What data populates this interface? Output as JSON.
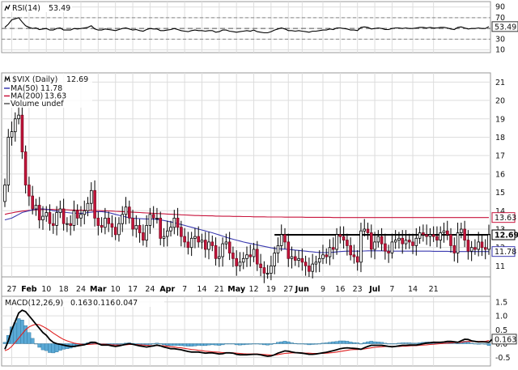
{
  "rsi_panel": {
    "label": "RSI(14)",
    "value": "53.49",
    "ticks": [
      "90",
      "70",
      "50",
      "30",
      "10"
    ],
    "tag": "53.49"
  },
  "price_panel": {
    "symbol_label": "$VIX (Daily)",
    "last": "12.69",
    "legend": [
      {
        "label": "MA(50)",
        "value": "11.78",
        "color": "#3a3ab0"
      },
      {
        "label": "MA(200)",
        "value": "13.63",
        "color": "#c8143c"
      },
      {
        "label": "Volume undef",
        "value": "",
        "color": "#555555"
      }
    ],
    "ticks": [
      "21",
      "20",
      "19",
      "18",
      "17",
      "16",
      "15",
      "14",
      "13",
      "12",
      "11"
    ],
    "tags": {
      "ma200": "13.63",
      "last": "12.69",
      "ma50": "11.78"
    }
  },
  "date_axis": [
    {
      "text": "27",
      "b": false
    },
    {
      "text": "Feb",
      "b": true
    },
    {
      "text": "10",
      "b": false
    },
    {
      "text": "18",
      "b": false
    },
    {
      "text": "24",
      "b": false
    },
    {
      "text": "Mar",
      "b": true
    },
    {
      "text": "10",
      "b": false
    },
    {
      "text": "17",
      "b": false
    },
    {
      "text": "24",
      "b": false
    },
    {
      "text": "Apr",
      "b": true
    },
    {
      "text": "7",
      "b": false
    },
    {
      "text": "14",
      "b": false
    },
    {
      "text": "21",
      "b": false
    },
    {
      "text": "May",
      "b": true
    },
    {
      "text": "12",
      "b": false
    },
    {
      "text": "19",
      "b": false
    },
    {
      "text": "27",
      "b": false
    },
    {
      "text": "Jun",
      "b": true
    },
    {
      "text": "9",
      "b": false
    },
    {
      "text": "16",
      "b": false
    },
    {
      "text": "23",
      "b": false
    },
    {
      "text": "Jul",
      "b": true
    },
    {
      "text": "7",
      "b": false
    },
    {
      "text": "14",
      "b": false
    },
    {
      "text": "21",
      "b": false
    }
  ],
  "macd_panel": {
    "label": "MACD(12,26,9)",
    "values": [
      "0.163",
      "0.116",
      "0.047"
    ],
    "colors": [
      "#000000",
      "#e02020",
      "#1f9bc4"
    ],
    "ticks": [
      "1.5",
      "1.0",
      "0.5",
      "0.0",
      "-0.5"
    ],
    "tag": "0.163"
  },
  "chart_data": {
    "type": "candlestick",
    "title": "$VIX (Daily)",
    "horizontal_line": 12.69,
    "price_ylim": [
      10.4,
      21.5
    ],
    "rsi_ylim": [
      5,
      100
    ],
    "macd_ylim": [
      -0.8,
      1.7
    ],
    "x": [
      0,
      1,
      2,
      3,
      4,
      5,
      6,
      7,
      8,
      9,
      10,
      11,
      12,
      13,
      14,
      15,
      16,
      17,
      18,
      19,
      20,
      21,
      22,
      23,
      24,
      25,
      26,
      27,
      28,
      29,
      30,
      31,
      32,
      33,
      34,
      35,
      36,
      37,
      38,
      39,
      40,
      41,
      42,
      43,
      44,
      45,
      46,
      47,
      48,
      49,
      50,
      51,
      52,
      53,
      54,
      55,
      56,
      57,
      58,
      59,
      60,
      61,
      62,
      63,
      64,
      65,
      66,
      67,
      68,
      69,
      70,
      71,
      72,
      73,
      74,
      75,
      76,
      77,
      78,
      79,
      80,
      81,
      82,
      83,
      84,
      85,
      86,
      87,
      88,
      89,
      90,
      91,
      92,
      93,
      94,
      95,
      96,
      97,
      98,
      99,
      100,
      101,
      102,
      103,
      104,
      105,
      106,
      107,
      108,
      109,
      110,
      111,
      112,
      113,
      114,
      115,
      116,
      117,
      118,
      119,
      120,
      121,
      122,
      123,
      124,
      125,
      126,
      127,
      128,
      129,
      130,
      131,
      132,
      133,
      134,
      135,
      136,
      137,
      138,
      139,
      140
    ],
    "open": [
      14.5,
      15.4,
      18.0,
      18.3,
      19.0,
      19.2,
      17.2,
      15.4,
      14.8,
      14.1,
      14.3,
      13.5,
      13.7,
      13.9,
      13.3,
      13.2,
      13.9,
      14.1,
      13.3,
      13.3,
      13.2,
      14.0,
      13.6,
      13.8,
      14.0,
      14.4,
      15.1,
      13.6,
      13.2,
      13.1,
      13.6,
      13.3,
      13.1,
      12.7,
      13.3,
      13.8,
      14.2,
      13.6,
      13.0,
      13.2,
      12.8,
      12.4,
      13.2,
      13.8,
      13.6,
      13.6,
      12.5,
      12.6,
      12.9,
      13.1,
      13.6,
      13.1,
      12.6,
      12.3,
      12.0,
      12.5,
      12.6,
      12.3,
      12.4,
      11.9,
      12.3,
      12.1,
      11.4,
      11.5,
      12.2,
      12.3,
      11.7,
      11.4,
      11.0,
      11.2,
      11.4,
      11.6,
      11.5,
      11.9,
      11.1,
      10.9,
      10.6,
      10.6,
      11.0,
      11.7,
      12.1,
      12.7,
      12.3,
      11.4,
      11.5,
      11.3,
      11.4,
      11.2,
      11.0,
      10.7,
      11.1,
      11.2,
      11.4,
      11.6,
      11.5,
      12.0,
      11.9,
      12.7,
      12.6,
      12.4,
      12.1,
      11.6,
      11.5,
      11.2,
      12.9,
      13.0,
      12.8,
      11.9,
      12.3,
      12.6,
      12.2,
      11.8,
      11.7,
      12.3,
      12.4,
      12.5,
      12.2,
      12.4,
      12.3,
      12.1,
      12.5,
      12.8,
      12.7,
      12.6,
      12.7,
      12.6,
      12.4,
      12.8,
      12.9,
      12.7,
      12.1,
      11.7,
      12.8,
      13.0,
      12.4,
      11.8,
      12.0,
      11.9,
      12.3,
      12.0,
      11.9
    ],
    "close": [
      15.4,
      18.0,
      18.3,
      19.0,
      19.2,
      17.2,
      15.4,
      14.8,
      14.1,
      14.3,
      13.5,
      13.7,
      13.9,
      13.3,
      13.2,
      13.9,
      14.1,
      13.3,
      13.3,
      13.2,
      14.0,
      13.6,
      13.8,
      14.0,
      14.4,
      15.1,
      13.6,
      13.2,
      13.1,
      13.6,
      13.3,
      13.1,
      12.7,
      13.3,
      13.8,
      14.2,
      13.6,
      13.0,
      13.2,
      12.8,
      12.4,
      13.2,
      13.8,
      13.6,
      13.6,
      12.5,
      12.6,
      12.9,
      13.1,
      13.6,
      13.1,
      12.6,
      12.3,
      12.0,
      12.5,
      12.6,
      12.3,
      12.4,
      11.9,
      12.3,
      12.1,
      11.4,
      11.5,
      12.2,
      12.3,
      11.7,
      11.4,
      11.0,
      11.2,
      11.4,
      11.6,
      11.5,
      11.9,
      11.1,
      10.9,
      10.6,
      10.6,
      11.0,
      11.7,
      12.1,
      12.7,
      12.3,
      11.4,
      11.5,
      11.3,
      11.4,
      11.2,
      11.0,
      10.7,
      11.1,
      11.2,
      11.4,
      11.6,
      11.5,
      12.0,
      11.9,
      12.7,
      12.6,
      12.4,
      12.1,
      11.6,
      11.5,
      11.2,
      12.9,
      13.0,
      12.8,
      11.9,
      12.3,
      12.6,
      12.2,
      11.8,
      11.7,
      12.3,
      12.4,
      12.5,
      12.2,
      12.4,
      12.3,
      12.1,
      12.5,
      12.8,
      12.7,
      12.6,
      12.7,
      12.6,
      12.4,
      12.8,
      12.9,
      12.7,
      12.1,
      11.7,
      12.8,
      13.0,
      12.4,
      11.8,
      12.0,
      11.9,
      12.3,
      12.0,
      11.9,
      12.69
    ],
    "ma50": [
      13.5,
      13.55,
      13.6,
      13.7,
      13.8,
      13.9,
      13.95,
      14.0,
      14.05,
      14.08,
      14.1,
      14.1,
      14.08,
      14.05,
      14.0,
      13.98,
      13.95,
      13.92,
      13.9,
      13.88,
      13.87,
      13.86,
      13.86,
      13.87,
      13.9,
      13.92,
      13.94,
      13.95,
      13.95,
      13.93,
      13.9,
      13.85,
      13.8,
      13.75,
      13.7,
      13.66,
      13.62,
      13.6,
      13.58,
      13.57,
      13.56,
      13.55,
      13.55,
      13.54,
      13.53,
      13.5,
      13.47,
      13.43,
      13.39,
      13.35,
      13.3,
      13.25,
      13.2,
      13.15,
      13.1,
      13.05,
      13.0,
      12.95,
      12.9,
      12.85,
      12.8,
      12.74,
      12.68,
      12.62,
      12.56,
      12.5,
      12.45,
      12.4,
      12.35,
      12.3,
      12.26,
      12.22,
      12.18,
      12.14,
      12.1,
      12.06,
      12.02,
      11.98,
      11.95,
      11.93,
      11.92,
      11.91,
      11.9,
      11.88,
      11.86,
      11.84,
      11.82,
      11.8,
      11.78,
      11.76,
      11.74,
      11.73,
      11.72,
      11.72,
      11.73,
      11.74,
      11.76,
      11.78,
      11.79,
      11.8,
      11.8,
      11.8,
      11.8,
      11.8,
      11.81,
      11.82,
      11.82,
      11.82,
      11.82,
      11.82,
      11.81,
      11.8,
      11.8,
      11.8,
      11.8,
      11.8,
      11.8,
      11.8,
      11.8,
      11.8,
      11.8,
      11.8,
      11.8,
      11.8,
      11.79,
      11.79,
      11.79,
      11.79,
      11.79,
      11.78,
      11.78,
      11.78,
      11.78,
      11.78,
      11.78,
      11.78,
      11.78,
      11.78,
      11.78,
      11.78,
      11.78
    ],
    "ma200": [
      13.8,
      13.85,
      13.88,
      13.92,
      13.95,
      13.98,
      14.0,
      14.02,
      14.04,
      14.05,
      14.06,
      14.07,
      14.07,
      14.07,
      14.07,
      14.06,
      14.06,
      14.05,
      14.05,
      14.04,
      14.04,
      14.03,
      14.03,
      14.02,
      14.02,
      14.02,
      14.01,
      14.01,
      14.0,
      14.0,
      13.99,
      13.98,
      13.97,
      13.96,
      13.95,
      13.94,
      13.93,
      13.92,
      13.91,
      13.9,
      13.89,
      13.88,
      13.87,
      13.86,
      13.85,
      13.84,
      13.83,
      13.82,
      13.81,
      13.8,
      13.79,
      13.78,
      13.77,
      13.76,
      13.75,
      13.74,
      13.74,
      13.73,
      13.73,
      13.72,
      13.72,
      13.71,
      13.71,
      13.7,
      13.7,
      13.7,
      13.69,
      13.69,
      13.69,
      13.68,
      13.68,
      13.68,
      13.67,
      13.67,
      13.67,
      13.67,
      13.66,
      13.66,
      13.66,
      13.66,
      13.66,
      13.65,
      13.65,
      13.65,
      13.65,
      13.65,
      13.65,
      13.64,
      13.64,
      13.64,
      13.64,
      13.64,
      13.64,
      13.64,
      13.64,
      13.63,
      13.63,
      13.63,
      13.63,
      13.63,
      13.63,
      13.63,
      13.63,
      13.63,
      13.63,
      13.63,
      13.63,
      13.63,
      13.63,
      13.63,
      13.63,
      13.63,
      13.63,
      13.63,
      13.63,
      13.63,
      13.63,
      13.63,
      13.63,
      13.63,
      13.63,
      13.63,
      13.63,
      13.63,
      13.63,
      13.63,
      13.63,
      13.63,
      13.63,
      13.63,
      13.63,
      13.63,
      13.63,
      13.63,
      13.63,
      13.63,
      13.63,
      13.63,
      13.63,
      13.63,
      13.63
    ],
    "rsi": [
      52,
      58,
      66,
      68,
      70,
      62,
      55,
      52,
      50,
      51,
      48,
      49,
      50,
      47,
      47,
      50,
      51,
      47,
      47,
      47,
      50,
      49,
      50,
      51,
      52,
      55,
      49,
      47,
      47,
      49,
      48,
      47,
      46,
      48,
      50,
      51,
      49,
      47,
      48,
      46,
      45,
      48,
      50,
      49,
      49,
      46,
      46,
      47,
      48,
      50,
      48,
      46,
      45,
      44,
      46,
      47,
      46,
      46,
      45,
      46,
      46,
      43,
      44,
      47,
      47,
      45,
      44,
      43,
      44,
      45,
      46,
      45,
      47,
      44,
      43,
      42,
      42,
      44,
      47,
      49,
      51,
      49,
      46,
      46,
      45,
      46,
      45,
      44,
      43,
      45,
      45,
      46,
      47,
      47,
      49,
      48,
      51,
      51,
      50,
      49,
      47,
      47,
      46,
      52,
      53,
      52,
      49,
      50,
      51,
      50,
      48,
      48,
      50,
      51,
      51,
      50,
      51,
      50,
      50,
      51,
      52,
      52,
      51,
      52,
      51,
      51,
      52,
      52,
      51,
      49,
      48,
      52,
      53,
      51,
      49,
      50,
      50,
      51,
      50,
      50,
      53.49
    ],
    "macd": [
      -0.2,
      0.1,
      0.5,
      0.8,
      1.1,
      1.2,
      1.15,
      1.0,
      0.85,
      0.7,
      0.55,
      0.4,
      0.3,
      0.15,
      0.05,
      0.0,
      -0.02,
      -0.05,
      -0.08,
      -0.1,
      -0.1,
      -0.08,
      -0.06,
      -0.04,
      0.0,
      0.05,
      0.05,
      0.0,
      -0.05,
      -0.05,
      -0.05,
      -0.08,
      -0.1,
      -0.08,
      -0.05,
      -0.02,
      0.0,
      -0.02,
      -0.05,
      -0.08,
      -0.1,
      -0.12,
      -0.1,
      -0.08,
      -0.05,
      -0.08,
      -0.12,
      -0.15,
      -0.18,
      -0.18,
      -0.2,
      -0.22,
      -0.25,
      -0.28,
      -0.3,
      -0.3,
      -0.3,
      -0.32,
      -0.34,
      -0.33,
      -0.33,
      -0.35,
      -0.37,
      -0.36,
      -0.33,
      -0.33,
      -0.34,
      -0.38,
      -0.4,
      -0.4,
      -0.4,
      -0.39,
      -0.38,
      -0.38,
      -0.4,
      -0.43,
      -0.45,
      -0.44,
      -0.4,
      -0.34,
      -0.3,
      -0.26,
      -0.27,
      -0.3,
      -0.32,
      -0.33,
      -0.34,
      -0.36,
      -0.38,
      -0.38,
      -0.37,
      -0.35,
      -0.33,
      -0.31,
      -0.28,
      -0.25,
      -0.22,
      -0.18,
      -0.16,
      -0.15,
      -0.16,
      -0.17,
      -0.18,
      -0.2,
      -0.15,
      -0.1,
      -0.06,
      -0.06,
      -0.06,
      -0.06,
      -0.08,
      -0.1,
      -0.11,
      -0.1,
      -0.08,
      -0.06,
      -0.06,
      -0.05,
      -0.05,
      -0.05,
      -0.03,
      0.0,
      0.02,
      0.03,
      0.05,
      0.05,
      0.05,
      0.06,
      0.08,
      0.08,
      0.07,
      0.05,
      0.1,
      0.16,
      0.15,
      0.1,
      0.08,
      0.06,
      0.07,
      0.06,
      0.05,
      0.163
    ],
    "signal": [
      -0.25,
      -0.2,
      -0.1,
      0.05,
      0.2,
      0.35,
      0.5,
      0.6,
      0.66,
      0.7,
      0.68,
      0.62,
      0.55,
      0.47,
      0.38,
      0.3,
      0.22,
      0.15,
      0.1,
      0.06,
      0.02,
      0.0,
      -0.02,
      -0.03,
      -0.03,
      -0.02,
      -0.01,
      -0.01,
      -0.02,
      -0.02,
      -0.03,
      -0.04,
      -0.05,
      -0.05,
      -0.05,
      -0.04,
      -0.03,
      -0.03,
      -0.03,
      -0.04,
      -0.05,
      -0.06,
      -0.07,
      -0.07,
      -0.07,
      -0.07,
      -0.08,
      -0.09,
      -0.11,
      -0.12,
      -0.14,
      -0.15,
      -0.17,
      -0.19,
      -0.21,
      -0.22,
      -0.24,
      -0.25,
      -0.27,
      -0.28,
      -0.29,
      -0.3,
      -0.31,
      -0.32,
      -0.32,
      -0.33,
      -0.33,
      -0.34,
      -0.35,
      -0.36,
      -0.37,
      -0.37,
      -0.37,
      -0.37,
      -0.38,
      -0.39,
      -0.4,
      -0.41,
      -0.41,
      -0.39,
      -0.37,
      -0.35,
      -0.34,
      -0.33,
      -0.33,
      -0.33,
      -0.33,
      -0.34,
      -0.34,
      -0.35,
      -0.35,
      -0.35,
      -0.35,
      -0.34,
      -0.33,
      -0.32,
      -0.3,
      -0.28,
      -0.26,
      -0.24,
      -0.22,
      -0.21,
      -0.21,
      -0.2,
      -0.19,
      -0.17,
      -0.15,
      -0.13,
      -0.12,
      -0.11,
      -0.1,
      -0.1,
      -0.1,
      -0.1,
      -0.1,
      -0.09,
      -0.09,
      -0.08,
      -0.07,
      -0.07,
      -0.06,
      -0.05,
      -0.04,
      -0.03,
      -0.02,
      -0.01,
      0.0,
      0.01,
      0.02,
      0.03,
      0.04,
      0.04,
      0.05,
      0.07,
      0.08,
      0.08,
      0.08,
      0.08,
      0.08,
      0.08,
      0.116
    ]
  }
}
